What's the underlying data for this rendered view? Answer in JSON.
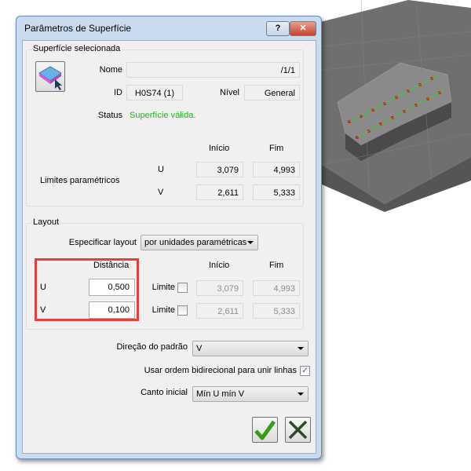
{
  "window": {
    "title": "Parâmetros de Superfície",
    "help": "?",
    "close": "✕"
  },
  "surface": {
    "legend": "Superfície selecionada",
    "name_label": "Nome",
    "name_value": "/1/1",
    "id_label": "ID",
    "id_value": "H0S74 (1)",
    "level_label": "Nível",
    "level_value": "General",
    "status_label": "Status",
    "status_value": "Superfície válida.",
    "status_color": "#18b818",
    "start_header": "Início",
    "end_header": "Fim",
    "limits_label": "Limites paramétricos",
    "u_label": "U",
    "v_label": "V",
    "u_start": "3,079",
    "u_end": "4,993",
    "v_start": "2,611",
    "v_end": "5,333"
  },
  "layout": {
    "legend": "Layout",
    "spec_label": "Especificar layout",
    "spec_value": "por unidades paramétricas",
    "distance_header": "Distância",
    "start_header": "Início",
    "end_header": "Fim",
    "u_label": "U",
    "v_label": "V",
    "u_distance": "0,500",
    "v_distance": "0,100",
    "limit_label": "Limite",
    "u_limit_checked": false,
    "v_limit_checked": false,
    "u_start": "3,079",
    "u_end": "4,993",
    "v_start": "2,611",
    "v_end": "5,333",
    "highlight_color": "#e04040"
  },
  "pattern": {
    "direction_label": "Direção do padrão",
    "direction_value": "V",
    "bidir_label": "Usar ordem bidirecional para unir linhas",
    "bidir_checked": true,
    "corner_label": "Canto inicial",
    "corner_value": "Mín U mín V"
  },
  "buttons": {
    "ok_icon": "check-icon",
    "cancel_icon": "x-icon"
  }
}
